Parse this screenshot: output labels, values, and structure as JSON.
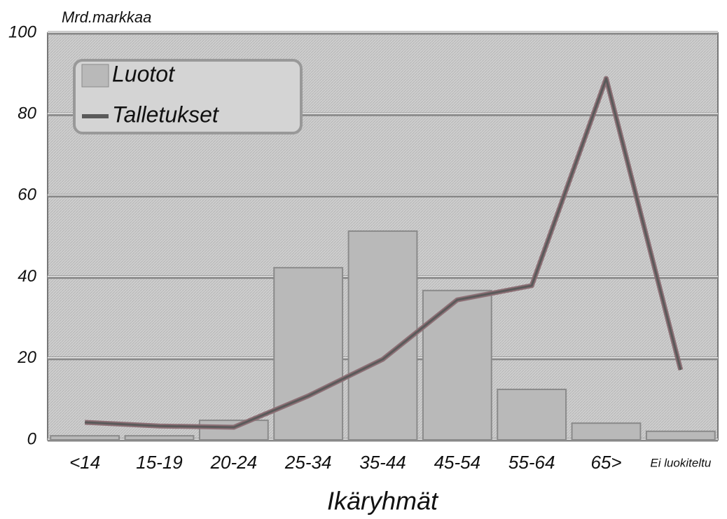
{
  "chart_data": {
    "type": "bar",
    "y_label": "Mrd.markkaa",
    "x_label": "Ikäryhmät",
    "categories": [
      "<14",
      "15-19",
      "20-24",
      "25-34",
      "35-44",
      "45-54",
      "55-64",
      "65>",
      "Ei luokiteltu"
    ],
    "series": [
      {
        "name": "Luotot",
        "type": "bar",
        "color": "#b9b9b9",
        "values": [
          1,
          1,
          4.8,
          42.3,
          51.3,
          36.7,
          12.4,
          4.1,
          2.1
        ]
      },
      {
        "name": "Talletukset",
        "type": "line",
        "color": "#5a5a5a",
        "values": [
          4.3,
          3.4,
          3.1,
          10.8,
          19.8,
          34.4,
          37.9,
          88.8,
          17.2
        ]
      }
    ],
    "ylim": [
      0,
      100
    ],
    "yticks": [
      0,
      20,
      40,
      60,
      80,
      100
    ],
    "grid": true,
    "legend": "top-left"
  }
}
